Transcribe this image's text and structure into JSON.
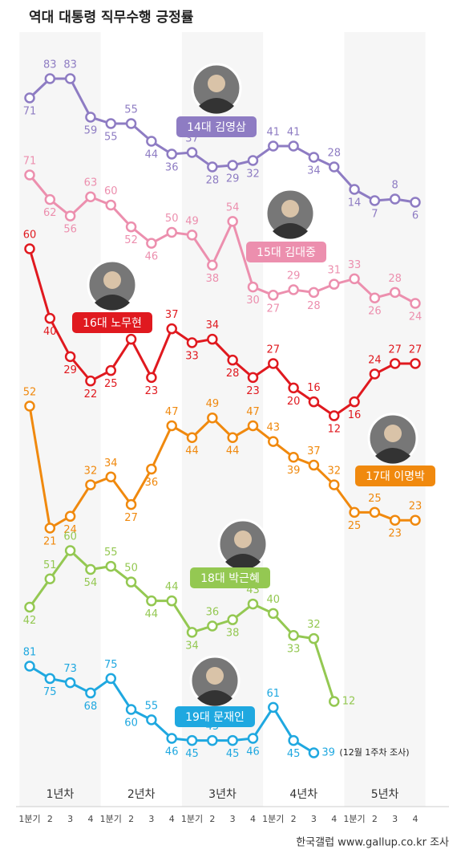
{
  "chart_data": {
    "type": "line",
    "title": "역대 대통령 직무수행 긍정률",
    "source": "한국갤럽 www.gallup.co.kr 조사",
    "annotation": "(12월 1주차 조사)",
    "year_labels": [
      "1년차",
      "2년차",
      "3년차",
      "4년차",
      "5년차"
    ],
    "categories": [
      "1분기",
      "2",
      "3",
      "4",
      "1분기",
      "2",
      "3",
      "4",
      "1분기",
      "2",
      "3",
      "4",
      "1분기",
      "2",
      "3",
      "4",
      "1분기",
      "2",
      "3",
      "4"
    ],
    "series": [
      {
        "name": "14대 김영삼",
        "color": "#8e7cc3",
        "values": [
          71,
          83,
          83,
          59,
          55,
          55,
          44,
          36,
          37,
          28,
          29,
          32,
          41,
          41,
          34,
          28,
          14,
          7,
          8,
          6
        ]
      },
      {
        "name": "15대 김대중",
        "color": "#ec8fae",
        "values": [
          71,
          62,
          56,
          63,
          60,
          52,
          46,
          50,
          49,
          38,
          54,
          30,
          27,
          29,
          28,
          31,
          33,
          26,
          28,
          24
        ]
      },
      {
        "name": "16대 노무현",
        "color": "#e0191f",
        "values": [
          60,
          40,
          29,
          22,
          25,
          34,
          23,
          37,
          33,
          34,
          28,
          23,
          27,
          20,
          16,
          12,
          16,
          24,
          27,
          27
        ]
      },
      {
        "name": "17대 이명박",
        "color": "#f0890e",
        "values": [
          52,
          21,
          24,
          32,
          34,
          27,
          36,
          47,
          44,
          49,
          44,
          47,
          43,
          39,
          37,
          32,
          25,
          25,
          23,
          23
        ]
      },
      {
        "name": "18대 박근혜",
        "color": "#94c852",
        "values": [
          42,
          51,
          60,
          54,
          55,
          50,
          44,
          44,
          34,
          36,
          38,
          43,
          40,
          33,
          32,
          12,
          null,
          null,
          null,
          null
        ]
      },
      {
        "name": "19대 문재인",
        "color": "#1fa8e0",
        "values": [
          81,
          75,
          73,
          68,
          75,
          60,
          55,
          46,
          45,
          45,
          45,
          46,
          61,
          45,
          39,
          null,
          null,
          null,
          null,
          null
        ]
      }
    ]
  }
}
